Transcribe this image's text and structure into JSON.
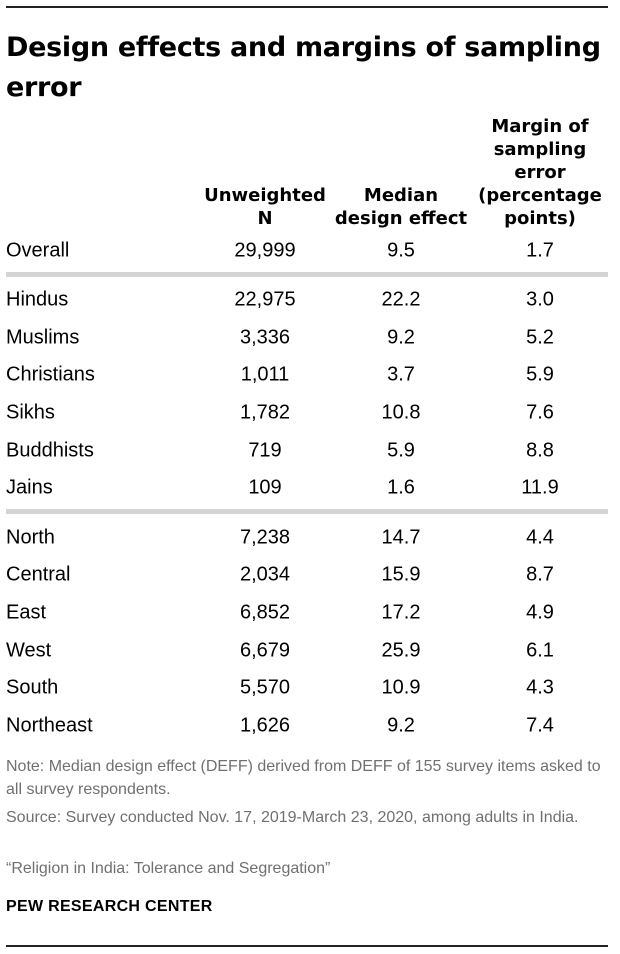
{
  "title": "Design effects and margins of sampling error",
  "columns": [
    "Unweighted\nN",
    "Median\ndesign effect",
    "Margin of\nsampling\nerror\n(percentage\npoints)"
  ],
  "chart_data": {
    "type": "table",
    "title": "Design effects and margins of sampling error",
    "columns": [
      "Unweighted N",
      "Median design effect",
      "Margin of sampling error (percentage points)"
    ],
    "groups": [
      {
        "rows": [
          {
            "label": "Overall",
            "n": "29,999",
            "deff": "9.5",
            "moe": "1.7"
          }
        ]
      },
      {
        "rows": [
          {
            "label": "Hindus",
            "n": "22,975",
            "deff": "22.2",
            "moe": "3.0"
          },
          {
            "label": "Muslims",
            "n": "3,336",
            "deff": "9.2",
            "moe": "5.2"
          },
          {
            "label": "Christians",
            "n": "1,011",
            "deff": "3.7",
            "moe": "5.9"
          },
          {
            "label": "Sikhs",
            "n": "1,782",
            "deff": "10.8",
            "moe": "7.6"
          },
          {
            "label": "Buddhists",
            "n": "719",
            "deff": "5.9",
            "moe": "8.8"
          },
          {
            "label": "Jains",
            "n": "109",
            "deff": "1.6",
            "moe": "11.9"
          }
        ]
      },
      {
        "rows": [
          {
            "label": "North",
            "n": "7,238",
            "deff": "14.7",
            "moe": "4.4"
          },
          {
            "label": "Central",
            "n": "2,034",
            "deff": "15.9",
            "moe": "8.7"
          },
          {
            "label": "East",
            "n": "6,852",
            "deff": "17.2",
            "moe": "4.9"
          },
          {
            "label": "West",
            "n": "6,679",
            "deff": "25.9",
            "moe": "6.1"
          },
          {
            "label": "South",
            "n": "5,570",
            "deff": "10.9",
            "moe": "4.3"
          },
          {
            "label": "Northeast",
            "n": "1,626",
            "deff": "9.2",
            "moe": "7.4"
          }
        ]
      }
    ]
  },
  "notes": {
    "note": "Note: Median design effect (DEFF) derived from DEFF of 155 survey items asked to all survey respondents.",
    "source": "Source: Survey conducted Nov. 17, 2019-March 23, 2020, among adults in India.",
    "report": "“Religion in India: Tolerance and Segregation”"
  },
  "footer": "PEW RESEARCH CENTER",
  "colors": {
    "separator": "#d4d4d4",
    "note_text": "#707070",
    "rule": "#222222"
  }
}
